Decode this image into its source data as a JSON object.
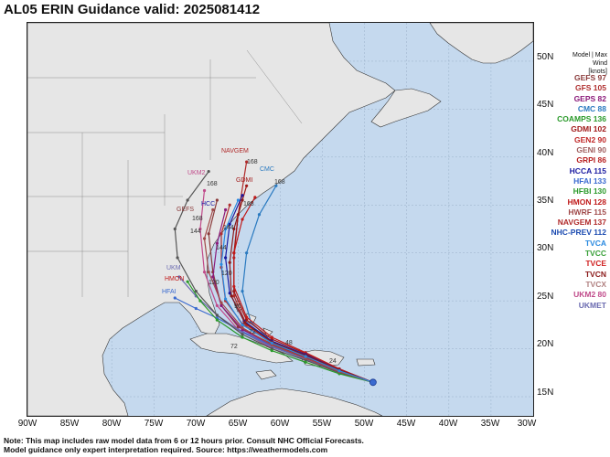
{
  "title": "AL05 ERIN Guidance valid: 2025081412",
  "map": {
    "region": "Western North Atlantic",
    "lon_range": [
      -90,
      -30
    ],
    "lat_range": [
      13,
      54
    ],
    "ocean_color": "#c5d9ee",
    "land_color": "#e6e6e6",
    "lat_labels": [
      "50N",
      "45N",
      "40N",
      "35N",
      "30N",
      "25N",
      "20N",
      "15N"
    ],
    "lon_labels": [
      "90W",
      "85W",
      "80W",
      "75W",
      "70W",
      "65W",
      "60W",
      "55W",
      "50W",
      "45W",
      "40W",
      "35W",
      "30W"
    ]
  },
  "legend": {
    "header_line1": "Model | Max Wind",
    "header_line2": "[knots]",
    "models": [
      {
        "label": "GEFS 97",
        "color": "#8a3a3a"
      },
      {
        "label": "GFS 105",
        "color": "#b03030"
      },
      {
        "label": "GEPS 82",
        "color": "#8b1a7a"
      },
      {
        "label": "CMC 88",
        "color": "#2a7ac0"
      },
      {
        "label": "COAMPS 136",
        "color": "#2a9a2a"
      },
      {
        "label": "GDMI 102",
        "color": "#a01818"
      },
      {
        "label": "GEN2 90",
        "color": "#c02828"
      },
      {
        "label": "GENI 90",
        "color": "#a06060"
      },
      {
        "label": "GRPI 86",
        "color": "#b82020"
      },
      {
        "label": "HCCA 115",
        "color": "#1a1aa0"
      },
      {
        "label": "HFAI 133",
        "color": "#3a6ad0"
      },
      {
        "label": "HFBI 130",
        "color": "#2a9a2a"
      },
      {
        "label": "HMON 128",
        "color": "#c01a1a"
      },
      {
        "label": "HWRF 115",
        "color": "#a04a4a"
      },
      {
        "label": "NAVGEM 137",
        "color": "#b02a2a"
      },
      {
        "label": "NHC-PREV 112",
        "color": "#1a4ab0"
      },
      {
        "label": "TVCA",
        "color": "#2a8ae0"
      },
      {
        "label": "TVCC",
        "color": "#3aa03a"
      },
      {
        "label": "TVCE",
        "color": "#d02020"
      },
      {
        "label": "TVCN",
        "color": "#8a1a1a"
      },
      {
        "label": "TVCX",
        "color": "#b08080"
      },
      {
        "label": "UKM2 80",
        "color": "#c04a8a"
      },
      {
        "label": "UKMET",
        "color": "#6a6ab0"
      }
    ]
  },
  "map_labels": {
    "navgem": "NAVGEM",
    "cmc": "CMC",
    "ukm2": "UKM2",
    "gefs": "GEFS",
    "hfai": "HFAI",
    "ukm": "UKM",
    "hmon": "HMON",
    "gdmi": "GDMI",
    "hcc": "HCC",
    "hour_168": "168",
    "hour_144": "144",
    "hour_120": "120",
    "hour_96": "96",
    "hour_72": "72",
    "hour_48": "48",
    "hour_24": "24"
  },
  "tracks": [
    {
      "name": "NAVGEM",
      "color": "#b02a2a",
      "points": [
        [
          -49,
          16.5
        ],
        [
          -53,
          17.8
        ],
        [
          -57,
          19.3
        ],
        [
          -61,
          20.7
        ],
        [
          -64,
          22.5
        ],
        [
          -65.5,
          25.5
        ],
        [
          -65.5,
          29.5
        ],
        [
          -65,
          34
        ],
        [
          -64,
          39.5
        ]
      ]
    },
    {
      "name": "CMC",
      "color": "#2a7ac0",
      "points": [
        [
          -49,
          16.5
        ],
        [
          -53,
          17.8
        ],
        [
          -57,
          19.3
        ],
        [
          -61,
          20.7
        ],
        [
          -63.5,
          22.8
        ],
        [
          -64.5,
          26
        ],
        [
          -64,
          30
        ],
        [
          -62.5,
          34
        ],
        [
          -60.5,
          37
        ]
      ]
    },
    {
      "name": "GDMI",
      "color": "#a01818",
      "points": [
        [
          -49,
          16.5
        ],
        [
          -53,
          17.9
        ],
        [
          -57,
          19.5
        ],
        [
          -61,
          21
        ],
        [
          -64,
          23
        ],
        [
          -65.5,
          26
        ],
        [
          -65.5,
          30
        ],
        [
          -65,
          34
        ],
        [
          -64,
          37
        ]
      ]
    },
    {
      "name": "UKM2",
      "color": "#c04a8a",
      "points": [
        [
          -49,
          16.5
        ],
        [
          -53,
          17.6
        ],
        [
          -57,
          19
        ],
        [
          -61.5,
          20.3
        ],
        [
          -65,
          22
        ],
        [
          -67.5,
          24.5
        ],
        [
          -69,
          28
        ],
        [
          -69.5,
          32.5
        ],
        [
          -69,
          36.5
        ]
      ]
    },
    {
      "name": "GEFS",
      "color": "#8a3a3a",
      "points": [
        [
          -49,
          16.5
        ],
        [
          -53,
          17.7
        ],
        [
          -57,
          19.1
        ],
        [
          -61,
          20.5
        ],
        [
          -65,
          22.3
        ],
        [
          -67,
          24.5
        ],
        [
          -68,
          28
        ],
        [
          -68.5,
          32
        ],
        [
          -67.5,
          35.5
        ]
      ]
    },
    {
      "name": "GFS",
      "color": "#b03030",
      "points": [
        [
          -49,
          16.5
        ],
        [
          -53,
          17.7
        ],
        [
          -57,
          19.2
        ],
        [
          -61,
          20.6
        ],
        [
          -64.5,
          22.6
        ],
        [
          -66.5,
          25
        ],
        [
          -67,
          28.5
        ],
        [
          -67,
          32
        ],
        [
          -66,
          35
        ]
      ]
    },
    {
      "name": "HMON",
      "color": "#c01a1a",
      "points": [
        [
          -49,
          16.5
        ],
        [
          -53,
          17.9
        ],
        [
          -57,
          19.6
        ],
        [
          -61,
          21.2
        ],
        [
          -64,
          23.3
        ],
        [
          -65.5,
          26.5
        ],
        [
          -65.5,
          30
        ],
        [
          -64.5,
          33.5
        ],
        [
          -63,
          35.8
        ]
      ]
    },
    {
      "name": "HCCA",
      "color": "#1a1aa0",
      "points": [
        [
          -49,
          16.5
        ],
        [
          -53,
          17.8
        ],
        [
          -57,
          19.4
        ],
        [
          -61,
          20.8
        ],
        [
          -64.3,
          22.9
        ],
        [
          -66,
          25.8
        ],
        [
          -66.5,
          29.5
        ],
        [
          -66,
          33
        ],
        [
          -64.5,
          36
        ]
      ]
    },
    {
      "name": "HFAI",
      "color": "#3a6ad0",
      "points": [
        [
          -49,
          16.5
        ],
        [
          -53,
          17.5
        ],
        [
          -57,
          18.9
        ],
        [
          -61,
          20.3
        ],
        [
          -64.5,
          21.8
        ],
        [
          -67.5,
          23.2
        ],
        [
          -70,
          24.2
        ],
        [
          -72.5,
          25.3
        ]
      ]
    },
    {
      "name": "UKMET",
      "color": "#6a6ab0",
      "points": [
        [
          -49,
          16.5
        ],
        [
          -53,
          17.5
        ],
        [
          -57,
          18.9
        ],
        [
          -61,
          20.2
        ],
        [
          -64.5,
          21.7
        ],
        [
          -67.5,
          23.5
        ],
        [
          -70,
          25.5
        ],
        [
          -72,
          27.5
        ]
      ]
    },
    {
      "name": "GEPS",
      "color": "#8b1a7a",
      "points": [
        [
          -49,
          16.5
        ],
        [
          -53,
          17.6
        ],
        [
          -57,
          19
        ],
        [
          -61,
          20.4
        ],
        [
          -64.5,
          22
        ],
        [
          -67,
          24.5
        ],
        [
          -68,
          27.5
        ],
        [
          -67.5,
          31
        ],
        [
          -66.5,
          34.5
        ]
      ]
    },
    {
      "name": "TVCN",
      "color": "#8a1a1a",
      "points": [
        [
          -49,
          16.5
        ],
        [
          -53,
          17.8
        ],
        [
          -57,
          19.3
        ],
        [
          -61,
          20.7
        ],
        [
          -64.2,
          22.7
        ],
        [
          -65.8,
          25.5
        ],
        [
          -66,
          29
        ],
        [
          -65.5,
          32.5
        ],
        [
          -64.5,
          35.5
        ]
      ]
    },
    {
      "name": "GEFS-ENS",
      "color": "#555555",
      "points": [
        [
          -49,
          16.5
        ],
        [
          -53,
          17.5
        ],
        [
          -57,
          18.8
        ],
        [
          -61,
          20
        ],
        [
          -64.5,
          21.5
        ],
        [
          -67.5,
          23.5
        ],
        [
          -70,
          26
        ],
        [
          -72.2,
          29.5
        ],
        [
          -72.5,
          32.5
        ],
        [
          -71,
          35.5
        ],
        [
          -68.5,
          38.5
        ]
      ]
    },
    {
      "name": "COAMPS",
      "color": "#2a9a2a",
      "points": [
        [
          -49,
          16.5
        ],
        [
          -53,
          17.4
        ],
        [
          -57,
          18.6
        ],
        [
          -61,
          19.8
        ],
        [
          -64.5,
          21.2
        ],
        [
          -67.5,
          23
        ],
        [
          -69.5,
          25
        ],
        [
          -71,
          27
        ]
      ]
    },
    {
      "name": "HWRF",
      "color": "#a04a4a",
      "points": [
        [
          -49,
          16.5
        ],
        [
          -53,
          17.6
        ],
        [
          -57,
          19
        ],
        [
          -61,
          20.4
        ],
        [
          -64.5,
          22.2
        ],
        [
          -67,
          24.8
        ],
        [
          -68.5,
          28
        ],
        [
          -69,
          31.5
        ],
        [
          -68,
          34.5
        ]
      ]
    },
    {
      "name": "TVCA",
      "color": "#2a8ae0",
      "points": [
        [
          -49,
          16.5
        ],
        [
          -53,
          17.7
        ],
        [
          -57,
          19.2
        ],
        [
          -61,
          20.6
        ],
        [
          -64.5,
          22.5
        ],
        [
          -66.5,
          25.2
        ],
        [
          -67,
          28.8
        ],
        [
          -66.5,
          32.5
        ],
        [
          -65,
          35.5
        ]
      ]
    }
  ]
}
